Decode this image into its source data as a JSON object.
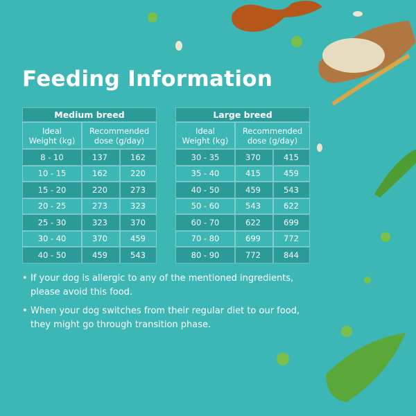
{
  "title": "Feeding Information",
  "tables": [
    {
      "title": "Medium breed",
      "headers": [
        "Ideal Weight (kg)",
        "Recommended dose (g/day)"
      ],
      "rows": [
        [
          "8 - 10",
          137,
          162
        ],
        [
          "10 - 15",
          162,
          220
        ],
        [
          "15 - 20",
          220,
          273
        ],
        [
          "20 - 25",
          273,
          323
        ],
        [
          "25 - 30",
          323,
          370
        ],
        [
          "30 - 40",
          370,
          459
        ],
        [
          "40 - 50",
          459,
          543
        ]
      ]
    },
    {
      "title": "Large breed",
      "headers": [
        "Ideal Weight (kg)",
        "Recommended dose (g/day)"
      ],
      "rows": [
        [
          "30 - 35",
          370,
          415
        ],
        [
          "35 - 40",
          415,
          459
        ],
        [
          "40 - 50",
          459,
          543
        ],
        [
          "50 - 60",
          543,
          622
        ],
        [
          "60 - 70",
          622,
          699
        ],
        [
          "70 - 80",
          699,
          772
        ],
        [
          "80 - 90",
          772,
          844
        ]
      ]
    }
  ],
  "notes": [
    "If your dog is allergic to any of the mentioned ingredients, please avoid this food.",
    "When your dog switches from their regular diet to our food, they might go through transition phase."
  ]
}
